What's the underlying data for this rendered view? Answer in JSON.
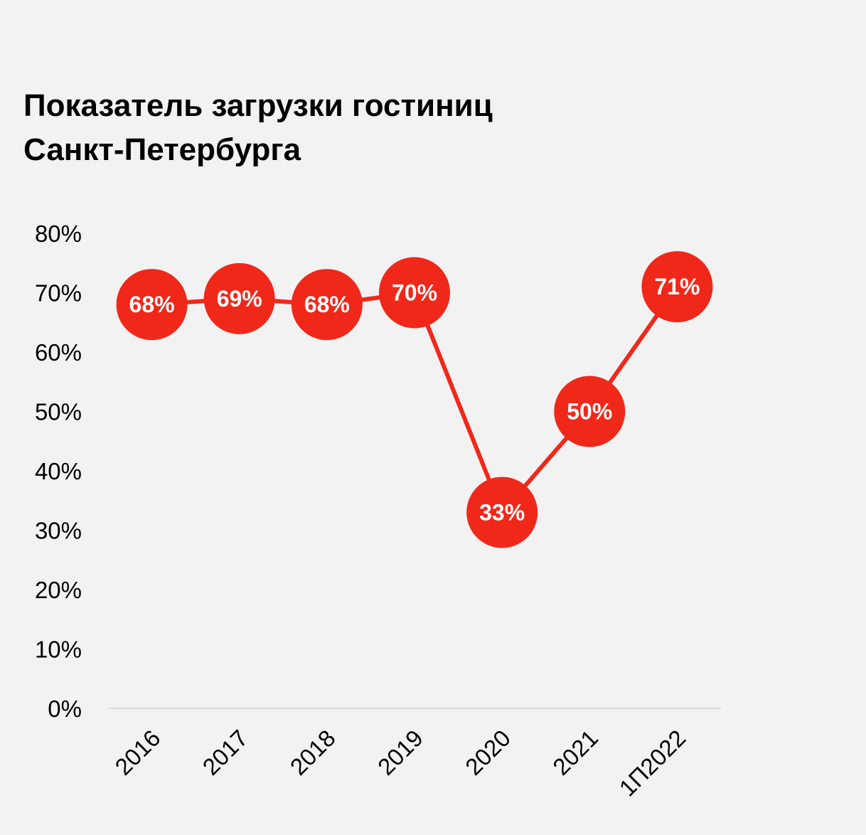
{
  "chart_data": {
    "type": "line",
    "title": [
      "Показатель загрузки гостиниц",
      "Санкт-Петербурга"
    ],
    "categories": [
      "2016",
      "2017",
      "2018",
      "2019",
      "2020",
      "2021",
      "1П2022"
    ],
    "values": [
      68,
      69,
      68,
      70,
      33,
      50,
      71
    ],
    "data_labels": [
      "68%",
      "69%",
      "68%",
      "70%",
      "33%",
      "50%",
      "71%"
    ],
    "y_ticks": [
      "0%",
      "10%",
      "20%",
      "30%",
      "40%",
      "50%",
      "60%",
      "70%",
      "80%"
    ],
    "ylim": [
      0,
      80
    ],
    "grid": false,
    "legend": "none",
    "colors": {
      "line": "#f0281a",
      "marker": "#f0281a",
      "label_text": "#ffffff",
      "axis": "#d9d9d9",
      "background": "#f2f2f2"
    }
  }
}
